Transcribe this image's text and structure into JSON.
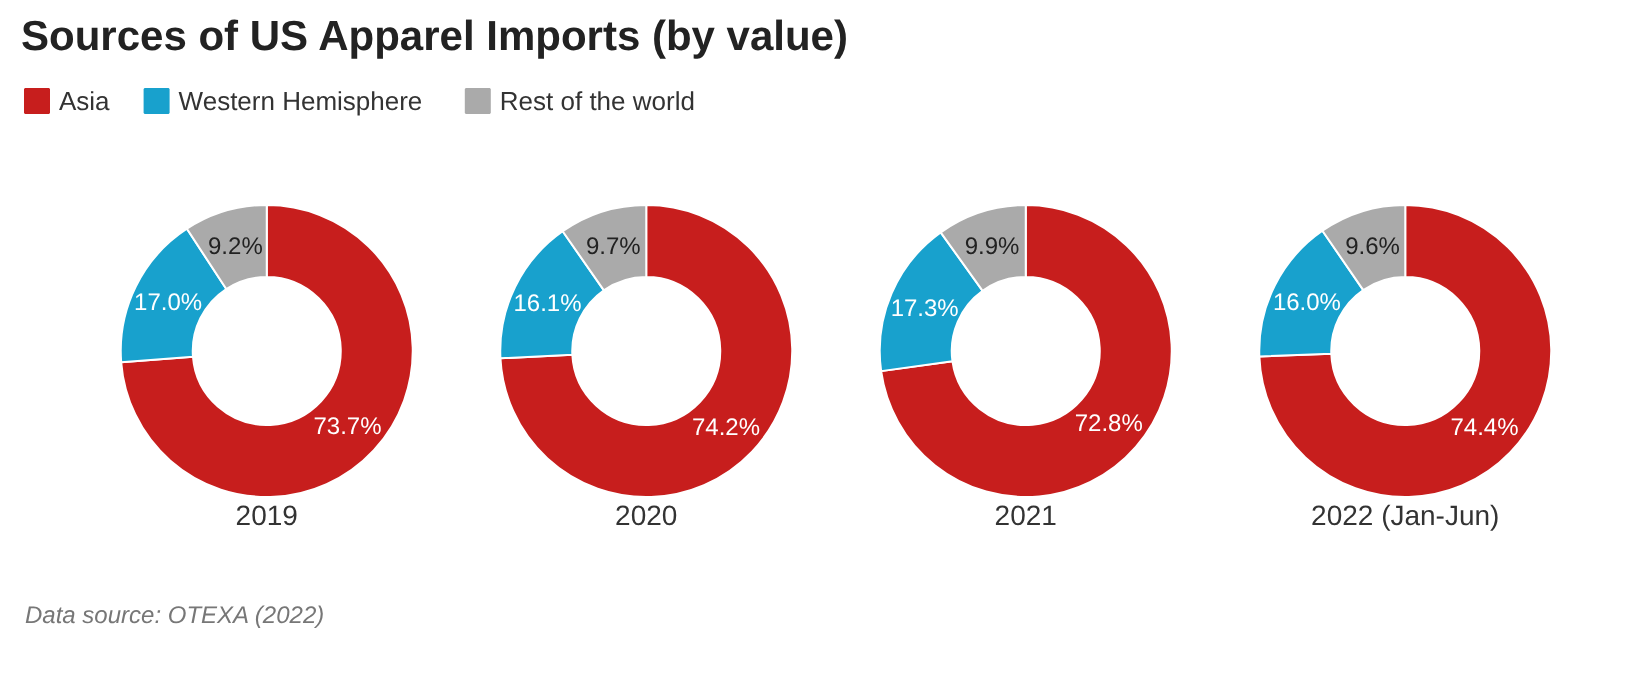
{
  "chart_data": {
    "type": "donut",
    "title": "Sources of US Apparel Imports (by value)",
    "legend": "top left",
    "categories": [
      "Asia",
      "Western Hemisphere",
      "Rest of the world"
    ],
    "colors": [
      "#c71e1d",
      "#18a1cd",
      "#aaaaaa"
    ],
    "series": [
      {
        "name": "2019",
        "values": [
          73.7,
          17.0,
          9.2
        ],
        "value_labels": [
          "73.7%",
          "17.0%",
          "9.2%"
        ]
      },
      {
        "name": "2020",
        "values": [
          74.2,
          16.1,
          9.7
        ],
        "value_labels": [
          "74.2%",
          "16.1%",
          "9.7%"
        ]
      },
      {
        "name": "2021",
        "values": [
          72.8,
          17.3,
          9.9
        ],
        "value_labels": [
          "72.8%",
          "17.3%",
          "9.9%"
        ]
      },
      {
        "name": "2022 (Jan-Jun)",
        "values": [
          74.4,
          16.0,
          9.6
        ],
        "value_labels": [
          "74.4%",
          "16.0%",
          "9.6%"
        ]
      }
    ],
    "annotations": [
      "Data source: OTEXA (2022)"
    ]
  }
}
